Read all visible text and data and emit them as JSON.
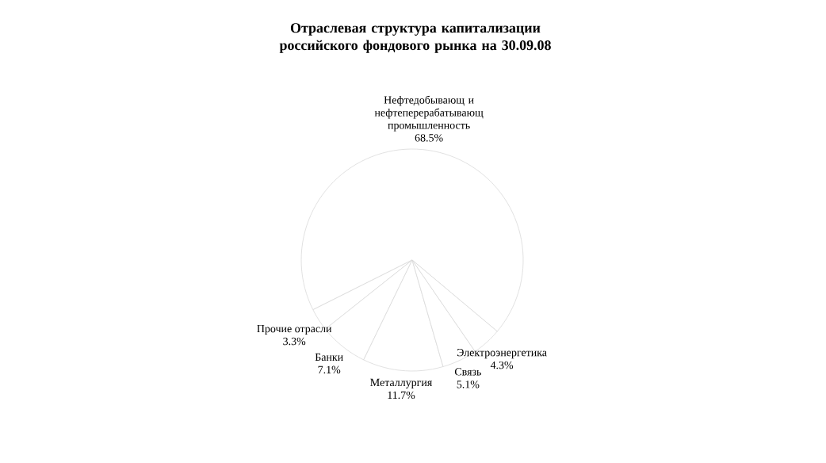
{
  "chart_data": {
    "type": "pie",
    "title": "Отраслевая структура капитализации российского фондового рынка на 30.09.08",
    "categories": [
      "Нефтедобывающ и нефтеперерабатывающ промышленность",
      "Прочие отрасли",
      "Банки",
      "Металлургия",
      "Связь",
      "Электроэнергетика"
    ],
    "values": [
      68.5,
      3.3,
      7.1,
      11.7,
      5.1,
      4.3
    ],
    "value_labels": [
      "68.5%",
      "3.3%",
      "7.1%",
      "11.7%",
      "5.1%",
      "4.3%"
    ],
    "colors": [
      "#ffffff",
      "#ffffff",
      "#ffffff",
      "#ffffff",
      "#ffffff",
      "#ffffff"
    ]
  }
}
